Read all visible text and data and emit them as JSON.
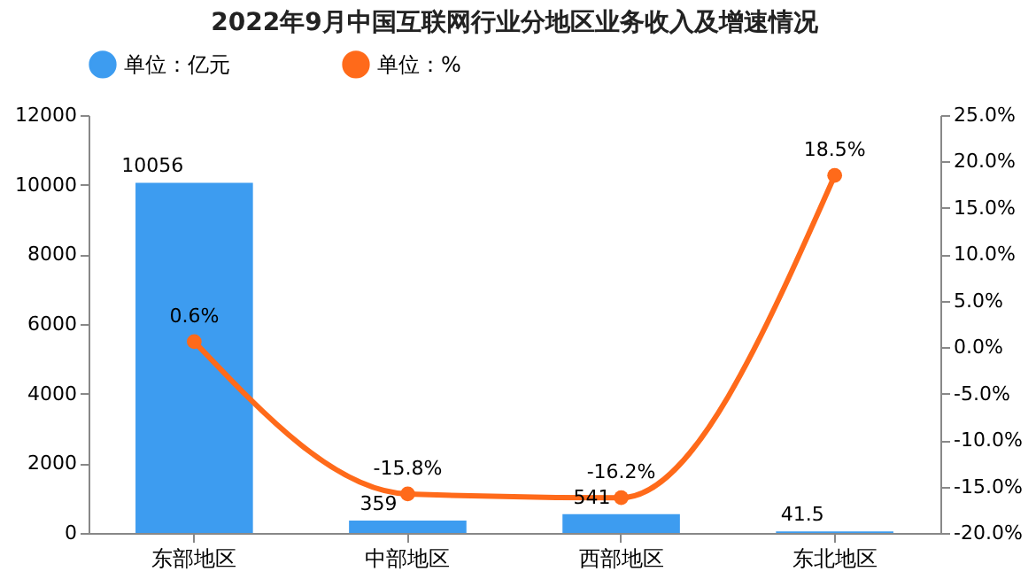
{
  "chart_data": {
    "type": "bar",
    "title": "2022年9月中国互联网行业分地区业务收入及增速情况",
    "categories": [
      "东部地区",
      "中部地区",
      "西部地区",
      "东北地区"
    ],
    "series": [
      {
        "name": "单位：亿元",
        "color": "#3d9cf0",
        "values": [
          10056,
          359,
          541,
          41.5
        ],
        "value_labels": [
          "10056",
          "359",
          "541",
          "41.5"
        ]
      },
      {
        "name": "单位：%",
        "type": "line",
        "axis": "y2",
        "color": "#ff6a1a",
        "values": [
          0.6,
          -15.8,
          -16.2,
          18.5
        ],
        "value_labels": [
          "0.6%",
          "-15.8%",
          "-16.2%",
          "18.5%"
        ]
      }
    ],
    "ylim": [
      0,
      12000
    ],
    "yticks": [
      0,
      2000,
      4000,
      6000,
      8000,
      10000,
      12000
    ],
    "y2lim": [
      -20,
      25
    ],
    "y2ticks": [
      {
        "value": -20,
        "label": "-20.0%"
      },
      {
        "value": -15,
        "label": "-15.0%"
      },
      {
        "value": -10,
        "label": "-10.0%"
      },
      {
        "value": -5,
        "label": "-5.0%"
      },
      {
        "value": 0,
        "label": "0.0%"
      },
      {
        "value": 5,
        "label": "5.0%"
      },
      {
        "value": 10,
        "label": "10.0%"
      },
      {
        "value": 15,
        "label": "15.0%"
      },
      {
        "value": 20,
        "label": "20.0%"
      },
      {
        "value": 25,
        "label": "25.0%"
      }
    ],
    "legend": "top",
    "marker": "circle",
    "grid": false
  }
}
